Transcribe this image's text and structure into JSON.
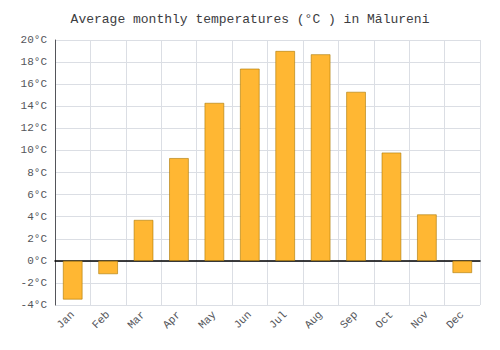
{
  "chart_data": {
    "type": "bar",
    "title": "Average monthly temperatures (°C ) in Mălureni",
    "categories": [
      "Jan",
      "Feb",
      "Mar",
      "Apr",
      "May",
      "Jun",
      "Jul",
      "Aug",
      "Sep",
      "Oct",
      "Nov",
      "Dec"
    ],
    "values": [
      -3.5,
      -1.2,
      3.7,
      9.3,
      14.3,
      17.4,
      19.0,
      18.7,
      15.3,
      9.8,
      4.2,
      -1.1
    ],
    "color": "#FFB733",
    "ylim": [
      -4,
      20
    ],
    "yticks": [
      {
        "value": -4,
        "label": "-4°C"
      },
      {
        "value": -2,
        "label": "-2°C"
      },
      {
        "value": 0,
        "label": "0°C"
      },
      {
        "value": 2,
        "label": "2°C"
      },
      {
        "value": 4,
        "label": "4°C"
      },
      {
        "value": 6,
        "label": "6°C"
      },
      {
        "value": 8,
        "label": "8°C"
      },
      {
        "value": 10,
        "label": "10°C"
      },
      {
        "value": 12,
        "label": "12°C"
      },
      {
        "value": 14,
        "label": "14°C"
      },
      {
        "value": 16,
        "label": "16°C"
      },
      {
        "value": 18,
        "label": "18°C"
      },
      {
        "value": 20,
        "label": "20°C"
      }
    ],
    "grid": true
  }
}
